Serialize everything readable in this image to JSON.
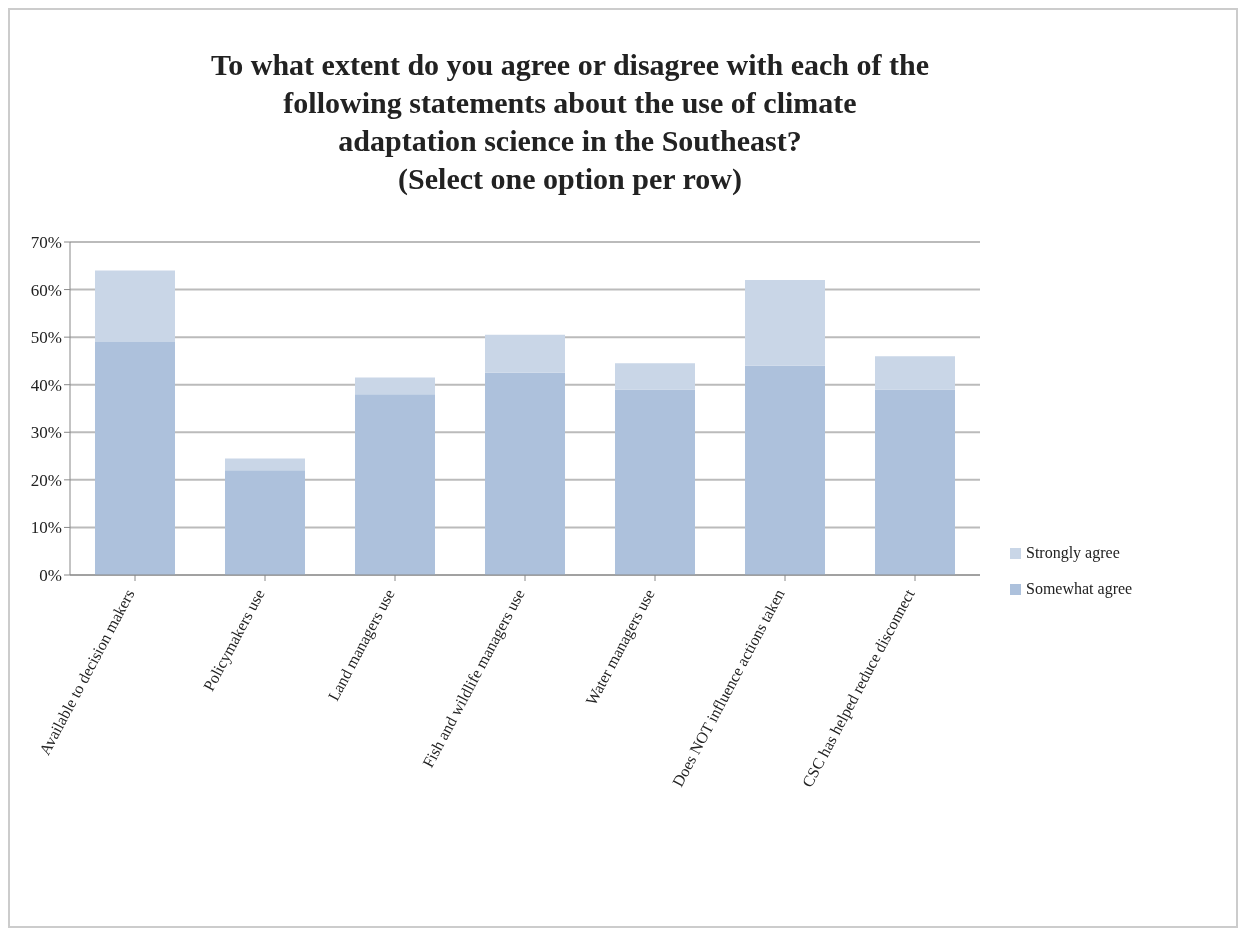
{
  "chart_data": {
    "type": "bar",
    "title": "To what extent do you agree or disagree with each of the\nfollowing statements about the use of climate\nadaptation science in the Southeast?\n(Select one option per row)",
    "categories": [
      "Available to decision makers",
      "Policymakers use",
      "Land managers use",
      "Fish and wildlife managers use",
      "Water managers use",
      "Does NOT influence actions taken",
      "CSC has helped reduce disconnect"
    ],
    "series": [
      {
        "name": "Somewhat agree",
        "color": "#adc1dc",
        "values": [
          49,
          22,
          38,
          42.5,
          39,
          44,
          39
        ]
      },
      {
        "name": "Strongly agree",
        "color": "#c9d6e7",
        "values": [
          15,
          2.5,
          3.5,
          8,
          5.5,
          18,
          7
        ]
      }
    ],
    "stacked": true,
    "ylim": [
      0,
      70
    ],
    "yticks": [
      {
        "value": 0,
        "label": "0%"
      },
      {
        "value": 10,
        "label": "10%"
      },
      {
        "value": 20,
        "label": "20%"
      },
      {
        "value": 30,
        "label": "30%"
      },
      {
        "value": 40,
        "label": "40%"
      },
      {
        "value": 50,
        "label": "50%"
      },
      {
        "value": 60,
        "label": "60%"
      },
      {
        "value": 70,
        "label": "70%"
      }
    ],
    "grid": "y",
    "legend": "right"
  }
}
